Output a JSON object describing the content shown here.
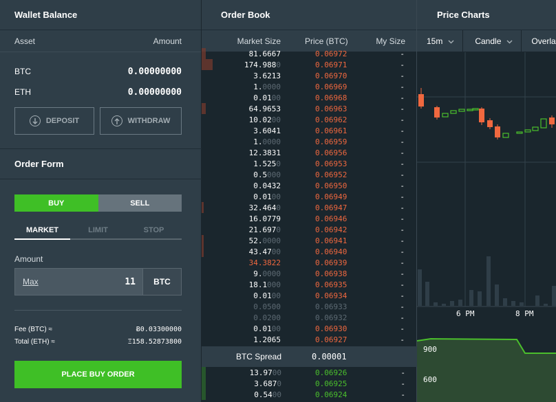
{
  "wallet": {
    "title": "Wallet Balance",
    "col_asset": "Asset",
    "col_amount": "Amount",
    "rows": [
      {
        "asset": "BTC",
        "amount": "0.00000000"
      },
      {
        "asset": "ETH",
        "amount": "0.00000000"
      }
    ],
    "deposit_label": "DEPOSIT",
    "withdraw_label": "WITHDRAW"
  },
  "order_form": {
    "title": "Order Form",
    "buy_label": "BUY",
    "sell_label": "SELL",
    "tabs": [
      "MARKET",
      "LIMIT",
      "STOP"
    ],
    "active_tab": "MARKET",
    "amount_label": "Amount",
    "max_label": "Max",
    "amount_value": "11",
    "amount_unit": "BTC",
    "fee_label": "Fee (BTC) ≈",
    "fee_value": "Ƀ0.03300000",
    "total_label": "Total (ETH) ≈",
    "total_value": "Ξ158.52873800",
    "place_label": "PLACE BUY ORDER"
  },
  "order_book": {
    "title": "Order Book",
    "col_size": "Market Size",
    "col_price": "Price (BTC)",
    "col_my": "My Size",
    "asks": [
      {
        "size": "81.6667",
        "dim": "",
        "price": "0.06972",
        "pdim": "",
        "my": "-",
        "depth": 0.02
      },
      {
        "size": "174.988",
        "dim": "0",
        "price": "0.06971",
        "pdim": "",
        "my": "-",
        "depth": 0.05
      },
      {
        "size": "3.6213",
        "dim": "",
        "price": "0.06970",
        "pdim": "",
        "my": "-",
        "depth": 0.0
      },
      {
        "size": "1.",
        "dim": "0000",
        "price": "0.06969",
        "pdim": "",
        "my": "-",
        "depth": 0.0
      },
      {
        "size": "0.01",
        "dim": "00",
        "price": "0.06968",
        "pdim": "",
        "my": "-",
        "depth": 0.0
      },
      {
        "size": "64.9653",
        "dim": "",
        "price": "0.06963",
        "pdim": "",
        "my": "-",
        "depth": 0.02
      },
      {
        "size": "10.02",
        "dim": "00",
        "price": "0.06962",
        "pdim": "",
        "my": "-",
        "depth": 0.0
      },
      {
        "size": "3.6041",
        "dim": "",
        "price": "0.06961",
        "pdim": "",
        "my": "-",
        "depth": 0.0
      },
      {
        "size": "1.",
        "dim": "0000",
        "price": "0.06959",
        "pdim": "",
        "my": "-",
        "depth": 0.0
      },
      {
        "size": "12.3831",
        "dim": "",
        "price": "0.06956",
        "pdim": "",
        "my": "-",
        "depth": 0.0
      },
      {
        "size": "1.525",
        "dim": "0",
        "price": "0.06953",
        "pdim": "",
        "my": "-",
        "depth": 0.0
      },
      {
        "size": "0.5",
        "dim": "000",
        "price": "0.06952",
        "pdim": "",
        "my": "-",
        "depth": 0.0
      },
      {
        "size": "0.0432",
        "dim": "",
        "price": "0.06950",
        "pdim": "",
        "my": "-",
        "depth": 0.0
      },
      {
        "size": "0.01",
        "dim": "00",
        "price": "0.06949",
        "pdim": "",
        "my": "-",
        "depth": 0.0
      },
      {
        "size": "32.464",
        "dim": "0",
        "price": "0.06947",
        "pdim": "",
        "my": "-",
        "depth": 0.01
      },
      {
        "size": "16.0779",
        "dim": "",
        "price": "0.06946",
        "pdim": "",
        "my": "-",
        "depth": 0.0
      },
      {
        "size": "21.697",
        "dim": "0",
        "price": "0.06942",
        "pdim": "",
        "my": "-",
        "depth": 0.0
      },
      {
        "size": "52.",
        "dim": "0000",
        "price": "0.06941",
        "pdim": "",
        "my": "-",
        "depth": 0.01
      },
      {
        "size": "43.47",
        "dim": "00",
        "price": "0.06940",
        "pdim": "",
        "my": "-",
        "depth": 0.01
      },
      {
        "size": "34.3822",
        "dim": "",
        "price": "0.06939",
        "pdim": "",
        "my": "-",
        "depth": 0.0,
        "highlight": true
      },
      {
        "size": "9.",
        "dim": "0000",
        "price": "0.06938",
        "pdim": "",
        "my": "-",
        "depth": 0.0
      },
      {
        "size": "18.1",
        "dim": "000",
        "price": "0.06935",
        "pdim": "",
        "my": "-",
        "depth": 0.0
      },
      {
        "size": "0.01",
        "dim": "00",
        "price": "0.06934",
        "pdim": "",
        "my": "-",
        "depth": 0.0
      },
      {
        "size": "",
        "dim": "0.0500",
        "price": "",
        "pdim": "0.06933",
        "my": "-",
        "depth": 0.0
      },
      {
        "size": "",
        "dim": "0.0200",
        "price": "",
        "pdim": "0.06932",
        "my": "-",
        "depth": 0.0
      },
      {
        "size": "0.01",
        "dim": "00",
        "price": "0.06930",
        "pdim": "",
        "my": "-",
        "depth": 0.0
      },
      {
        "size": "1.2065",
        "dim": "",
        "price": "0.06927",
        "pdim": "",
        "my": "-",
        "depth": 0.0
      }
    ],
    "spread_label": "BTC Spread",
    "spread_value": "0.00001",
    "bids": [
      {
        "size": "13.97",
        "dim": "00",
        "price": "0.06926",
        "my": "-",
        "depth": 0.02
      },
      {
        "size": "3.687",
        "dim": "0",
        "price": "0.06925",
        "my": "-",
        "depth": 0.02
      },
      {
        "size": "0.54",
        "dim": "00",
        "price": "0.06924",
        "my": "-",
        "depth": 0.02
      }
    ]
  },
  "price_charts": {
    "title": "Price Charts",
    "interval": "15m",
    "chart_type": "Candle",
    "overlay_label": "Overlay",
    "time_labels": [
      "6 PM",
      "8 PM"
    ],
    "depth_labels": [
      "900",
      "600"
    ],
    "colors": {
      "up": "#4bbf2c",
      "down": "#f0683f",
      "volume": "#2f3e48",
      "depth": "#2d4a32"
    }
  }
}
